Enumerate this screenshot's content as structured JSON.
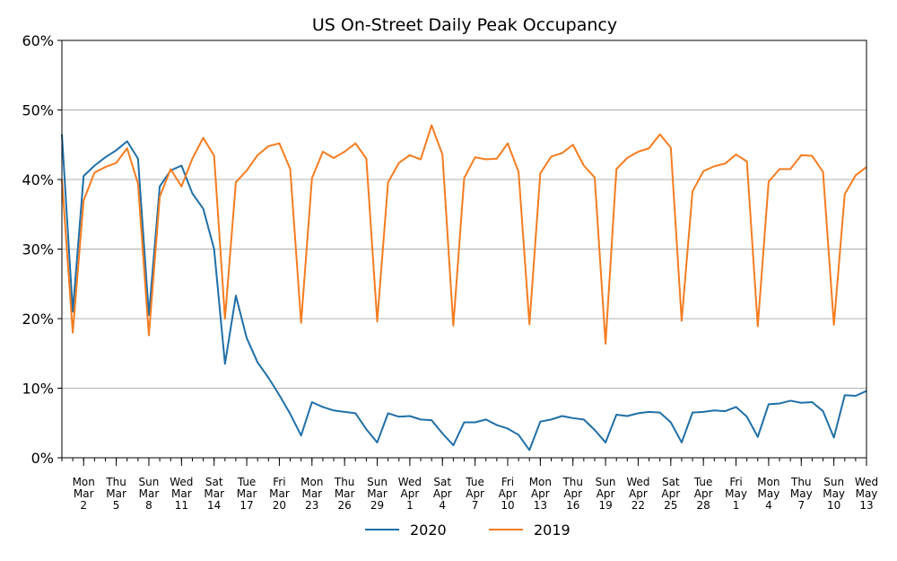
{
  "chart_data": {
    "type": "line",
    "title": "US On-Street Daily Peak Occupancy",
    "xlabel": "",
    "ylabel": "",
    "ylim": [
      0,
      60
    ],
    "yticks": [
      "0%",
      "10%",
      "20%",
      "30%",
      "40%",
      "50%",
      "60%"
    ],
    "grid": "horizontal",
    "legend_position": "bottom-center",
    "x_start": "Sat Feb 29",
    "x_ticks": [
      {
        "day": 2,
        "lines": [
          "Mon",
          "Mar",
          "2"
        ]
      },
      {
        "day": 5,
        "lines": [
          "Thu",
          "Mar",
          "5"
        ]
      },
      {
        "day": 8,
        "lines": [
          "Sun",
          "Mar",
          "8"
        ]
      },
      {
        "day": 11,
        "lines": [
          "Wed",
          "Mar",
          "11"
        ]
      },
      {
        "day": 14,
        "lines": [
          "Sat",
          "Mar",
          "14"
        ]
      },
      {
        "day": 17,
        "lines": [
          "Tue",
          "Mar",
          "17"
        ]
      },
      {
        "day": 20,
        "lines": [
          "Fri",
          "Mar",
          "20"
        ]
      },
      {
        "day": 23,
        "lines": [
          "Mon",
          "Mar",
          "23"
        ]
      },
      {
        "day": 26,
        "lines": [
          "Thu",
          "Mar",
          "26"
        ]
      },
      {
        "day": 29,
        "lines": [
          "Sun",
          "Mar",
          "29"
        ]
      },
      {
        "day": 32,
        "lines": [
          "Wed",
          "Apr",
          "1"
        ]
      },
      {
        "day": 35,
        "lines": [
          "Sat",
          "Apr",
          "4"
        ]
      },
      {
        "day": 38,
        "lines": [
          "Tue",
          "Apr",
          "7"
        ]
      },
      {
        "day": 41,
        "lines": [
          "Fri",
          "Apr",
          "10"
        ]
      },
      {
        "day": 44,
        "lines": [
          "Mon",
          "Apr",
          "13"
        ]
      },
      {
        "day": 47,
        "lines": [
          "Thu",
          "Apr",
          "16"
        ]
      },
      {
        "day": 50,
        "lines": [
          "Sun",
          "Apr",
          "19"
        ]
      },
      {
        "day": 53,
        "lines": [
          "Wed",
          "Apr",
          "22"
        ]
      },
      {
        "day": 56,
        "lines": [
          "Sat",
          "Apr",
          "25"
        ]
      },
      {
        "day": 59,
        "lines": [
          "Tue",
          "Apr",
          "28"
        ]
      },
      {
        "day": 62,
        "lines": [
          "Fri",
          "May",
          "1"
        ]
      },
      {
        "day": 65,
        "lines": [
          "Mon",
          "May",
          "4"
        ]
      },
      {
        "day": 68,
        "lines": [
          "Thu",
          "May",
          "7"
        ]
      },
      {
        "day": 71,
        "lines": [
          "Sun",
          "May",
          "10"
        ]
      },
      {
        "day": 74,
        "lines": [
          "Wed",
          "May",
          "13"
        ]
      }
    ],
    "series": [
      {
        "name": "2020",
        "color": "#1f6fa8",
        "values": [
          46.5,
          21,
          40.5,
          42,
          43.2,
          44.2,
          45.5,
          43,
          20.5,
          39,
          41.3,
          42,
          38,
          35.8,
          30,
          13.5,
          23.3,
          17.2,
          13.7,
          11.5,
          9,
          6.3,
          3.2,
          8,
          7.3,
          6.8,
          6.6,
          6.4,
          4.1,
          2.2,
          6.4,
          5.9,
          6,
          5.5,
          5.4,
          3.5,
          1.8,
          5.1,
          5.1,
          5.5,
          4.7,
          4.2,
          3.3,
          1.1,
          5.2,
          5.5,
          6,
          5.7,
          5.5,
          4,
          2.2,
          6.2,
          6,
          6.4,
          6.6,
          6.5,
          5.1,
          2.2,
          6.5,
          6.6,
          6.8,
          6.7,
          7.3,
          5.9,
          3,
          7.7,
          7.8,
          8.2,
          7.9,
          8,
          6.7,
          2.9,
          9,
          8.9,
          9.6
        ]
      },
      {
        "name": "2019",
        "color": "#f57c20",
        "values": [
          40,
          18,
          37,
          41,
          41.8,
          42.4,
          44.5,
          39.4,
          17.6,
          37.5,
          41.5,
          39,
          43,
          46,
          43.4,
          20,
          39.6,
          41.3,
          43.5,
          44.8,
          45.2,
          41.5,
          19.4,
          40.2,
          44,
          43.1,
          44,
          45.2,
          43,
          19.6,
          39.6,
          42.4,
          43.5,
          42.9,
          47.8,
          43.6,
          19,
          40.2,
          43.2,
          42.9,
          43,
          45.2,
          41.1,
          19.2,
          40.9,
          43.3,
          43.8,
          45,
          42,
          40.3,
          16.4,
          41.5,
          43.1,
          44,
          44.5,
          46.5,
          44.6,
          19.7,
          38.3,
          41.2,
          41.9,
          42.3,
          43.6,
          42.6,
          18.9,
          39.7,
          41.5,
          41.5,
          43.5,
          43.4,
          41.1,
          19.1,
          37.9,
          40.6,
          41.8
        ]
      }
    ]
  }
}
